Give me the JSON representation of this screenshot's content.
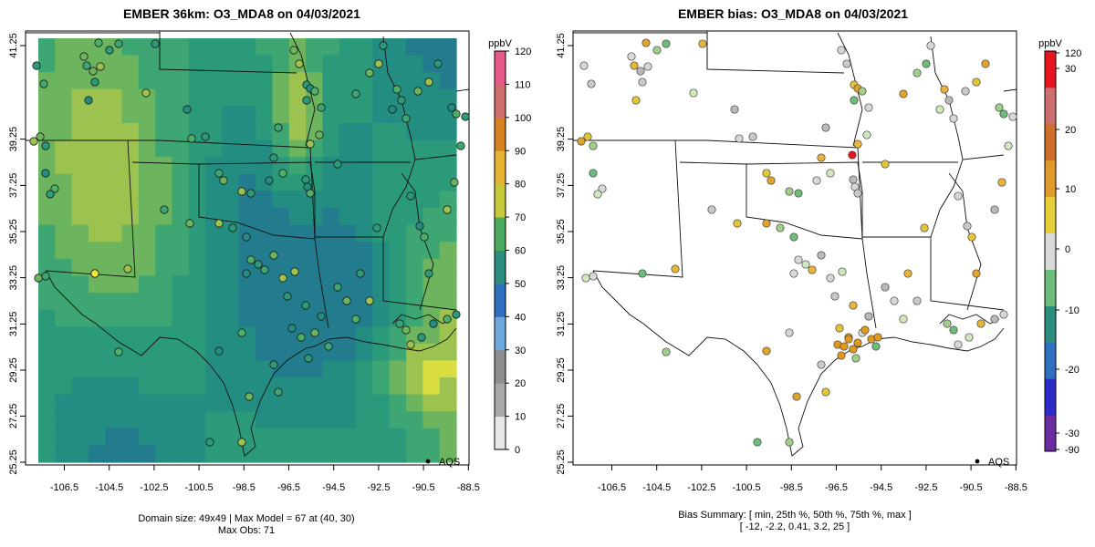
{
  "panels": [
    {
      "id": "model",
      "title": "EMBER 36km: O3_MDA8 on 04/03/2021",
      "x_ticks": [
        "-106.5",
        "-104.5",
        "-102.5",
        "-100.5",
        "-98.5",
        "-96.5",
        "-94.5",
        "-92.5",
        "-90.5",
        "-88.5"
      ],
      "y_ticks": [
        "25.25",
        "27.25",
        "29.25",
        "31.25",
        "33.25",
        "35.25",
        "37.25",
        "39.25",
        "41.25"
      ],
      "legend_text": "AQS",
      "caption_lines": [
        "Domain size: 49x49 | Max Model = 67 at (40, 30)",
        "Max Obs: 71"
      ],
      "colorbar": {
        "unit": "ppbV",
        "labels": [
          "0",
          "10",
          "20",
          "30",
          "40",
          "50",
          "60",
          "70",
          "80",
          "90",
          "100",
          "110",
          "120"
        ]
      }
    },
    {
      "id": "bias",
      "title": "EMBER bias: O3_MDA8 on 04/03/2021",
      "x_ticks": [
        "-106.5",
        "-104.5",
        "-102.5",
        "-100.5",
        "-98.5",
        "-96.5",
        "-94.5",
        "-92.5",
        "-90.5",
        "-88.5"
      ],
      "y_ticks": [
        "25.25",
        "27.25",
        "29.25",
        "31.25",
        "33.25",
        "35.25",
        "37.25",
        "39.25",
        "41.25"
      ],
      "legend_text": "AQS",
      "caption_lines": [
        "Bias Summary: [ min, 25th %, 50th %, 75th %, max ]",
        "[ -12,   -2.2,  0.41,   3.2,   25 ]"
      ],
      "colorbar": {
        "unit": "ppbV",
        "labels": [
          "-90",
          "-30",
          "-20",
          "-10",
          "0",
          "10",
          "20",
          "30",
          "120"
        ]
      }
    }
  ],
  "colors": {
    "model_base": "#2e9a78",
    "model_high": "#c9d24a",
    "bias_neutral": "#d9d9d9",
    "bias_pos": "#e39a1c",
    "bias_neg": "#3aa86a",
    "bias_max": "#e8141e"
  }
}
